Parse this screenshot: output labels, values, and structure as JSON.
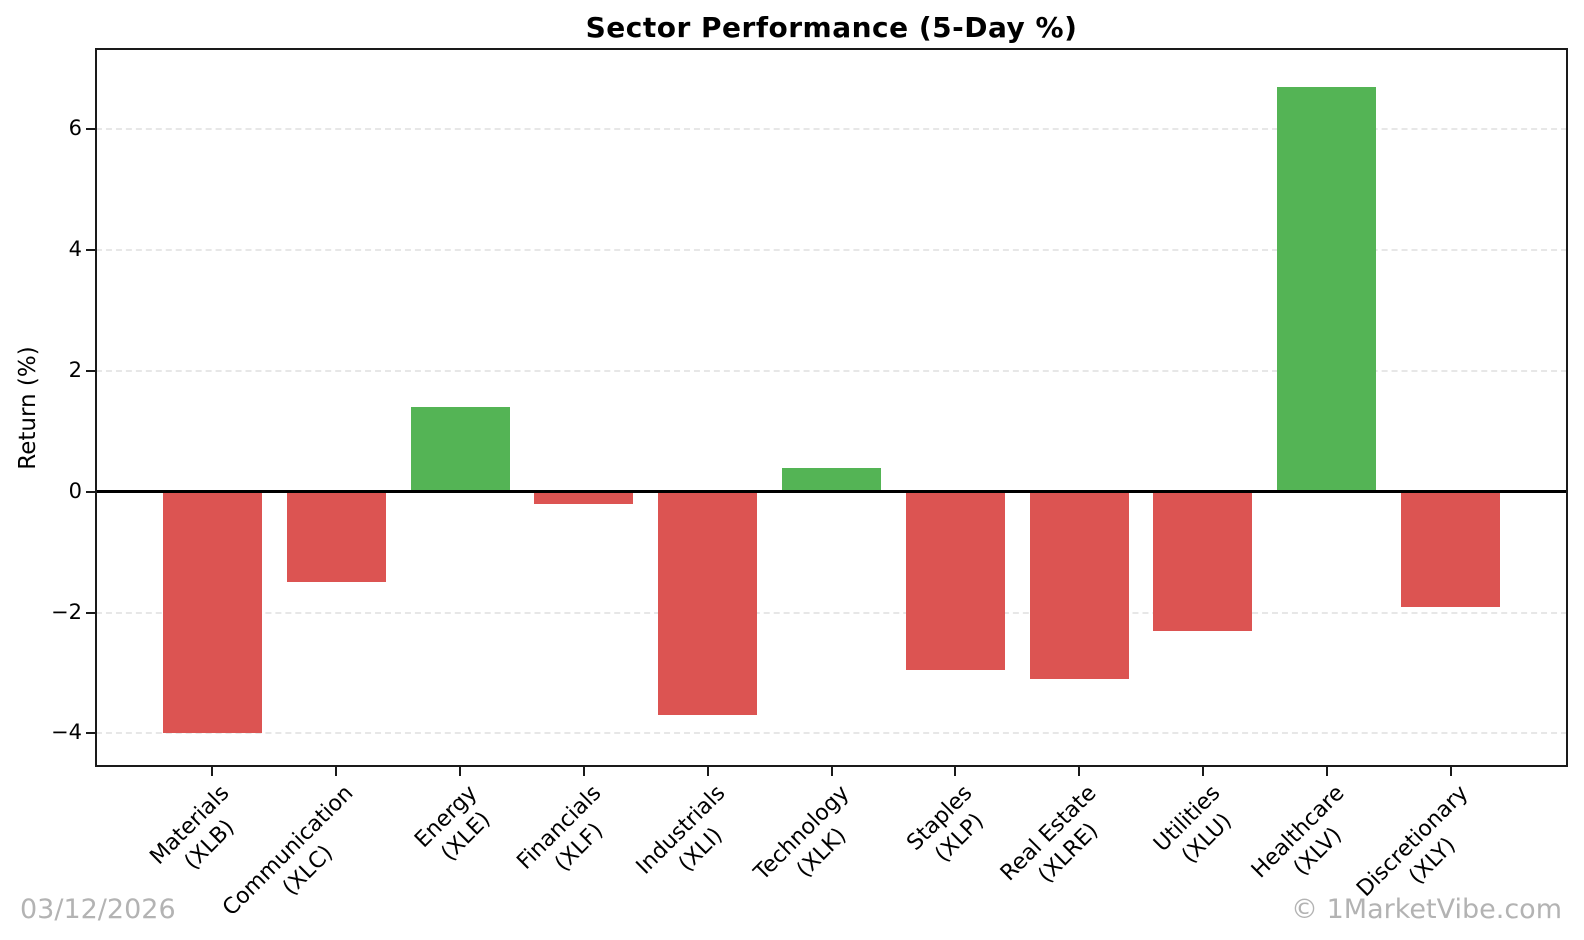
{
  "chart_data": {
    "type": "bar",
    "title": "Sector Performance (5-Day %)",
    "xlabel": "",
    "ylabel": "Return (%)",
    "categories": [
      {
        "name": "Materials",
        "ticker": "(XLB)"
      },
      {
        "name": "Communication",
        "ticker": "(XLC)"
      },
      {
        "name": "Energy",
        "ticker": "(XLE)"
      },
      {
        "name": "Financials",
        "ticker": "(XLF)"
      },
      {
        "name": "Industrials",
        "ticker": "(XLI)"
      },
      {
        "name": "Technology",
        "ticker": "(XLK)"
      },
      {
        "name": "Staples",
        "ticker": "(XLP)"
      },
      {
        "name": "Real Estate",
        "ticker": "(XLRE)"
      },
      {
        "name": "Utilities",
        "ticker": "(XLU)"
      },
      {
        "name": "Healthcare",
        "ticker": "(XLV)"
      },
      {
        "name": "Discretionary",
        "ticker": "(XLY)"
      }
    ],
    "values": [
      -4.0,
      -1.5,
      1.4,
      -0.2,
      -3.7,
      0.4,
      -2.95,
      -3.1,
      -2.3,
      6.7,
      -1.9
    ],
    "ylim": [
      -4.54,
      7.33
    ],
    "xlim": [
      -0.94,
      10.94
    ],
    "yticks": [
      6,
      4,
      2,
      0,
      -2,
      -4
    ],
    "grid": "horizontal-dashed",
    "legend": "none",
    "positive_color": "#54b455",
    "negative_color": "#dc5452",
    "zero_line_color": "#000000"
  },
  "footer": {
    "date": "03/12/2026",
    "watermark": "© 1MarketVibe.com"
  }
}
